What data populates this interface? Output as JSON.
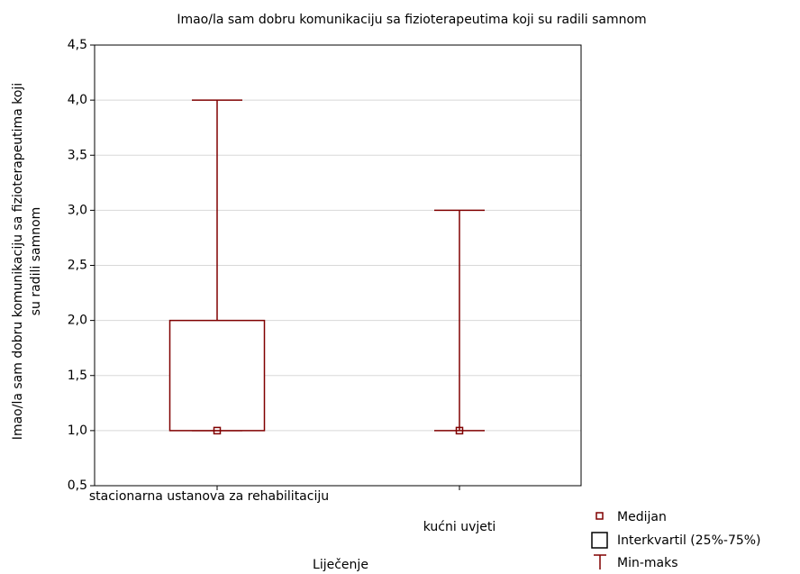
{
  "chart_data": {
    "type": "box",
    "title": "Imao/la sam dobru komunikaciju sa fizioterapeutima koji su radili samnom",
    "ylabel": [
      "Imao/la sam dobru komunikaciju sa fizioterapeutima koji",
      "su radili samnom"
    ],
    "xlabel": "Liječenje",
    "categories": [
      "stacionarna ustanova za rehabilitaciju",
      "kućni uvjeti"
    ],
    "boxes": [
      {
        "min": 1,
        "q1": 1,
        "median": 1,
        "q3": 2,
        "max": 4
      },
      {
        "min": 1,
        "q1": 1,
        "median": 1,
        "q3": 1,
        "max": 3
      }
    ],
    "color": "#800000",
    "ylim": [
      0.5,
      4.5
    ],
    "yticks": [
      {
        "value": 0.5,
        "label": "0,5"
      },
      {
        "value": 1,
        "label": "1,0"
      },
      {
        "value": 1.5,
        "label": "1,5"
      },
      {
        "value": 2,
        "label": "2,0"
      },
      {
        "value": 2.5,
        "label": "2,5"
      },
      {
        "value": 3,
        "label": "3,0"
      },
      {
        "value": 3.5,
        "label": "3,5"
      },
      {
        "value": 4,
        "label": "4,0"
      },
      {
        "value": 4.5,
        "label": "4,5"
      }
    ],
    "grid": true,
    "legend": [
      "Medijan",
      "Interkvartil (25%-75%)",
      "Min-maks"
    ]
  }
}
